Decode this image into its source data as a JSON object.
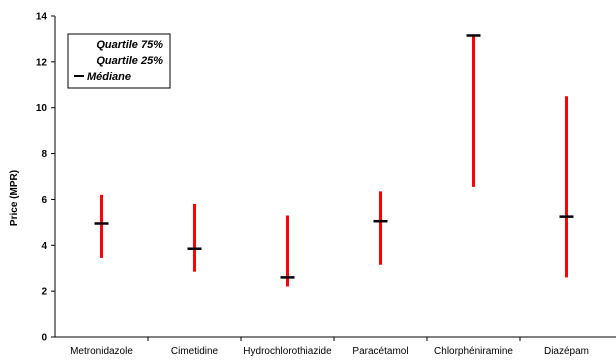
{
  "chart_data": {
    "type": "range",
    "title": "",
    "xlabel": "",
    "ylabel": "Price (MPR)",
    "ylim": [
      0,
      14
    ],
    "yticks": [
      0,
      2,
      4,
      6,
      8,
      10,
      12,
      14
    ],
    "categories": [
      "Metronidazole",
      "Cimetidine",
      "Hydrochlorothiazide",
      "Paracétamol",
      "Chlorphéniramine",
      "Diazépam"
    ],
    "series": [
      {
        "name": "Quartile 75%",
        "values": [
          6.2,
          5.8,
          5.3,
          6.35,
          13.15,
          10.5
        ]
      },
      {
        "name": "Quartile 25%",
        "values": [
          3.45,
          2.85,
          2.2,
          3.15,
          6.55,
          2.6
        ]
      },
      {
        "name": "Médiane",
        "values": [
          4.95,
          3.85,
          2.6,
          5.05,
          13.15,
          5.25
        ]
      }
    ],
    "colors": {
      "range_bar": "#ff0000",
      "median_marker": "#000000",
      "axis": "#000000"
    },
    "legend": {
      "placement": "top-left",
      "entries": [
        "Quartile 75%",
        "Quartile 25%",
        "Médiane"
      ]
    },
    "grid": false
  }
}
